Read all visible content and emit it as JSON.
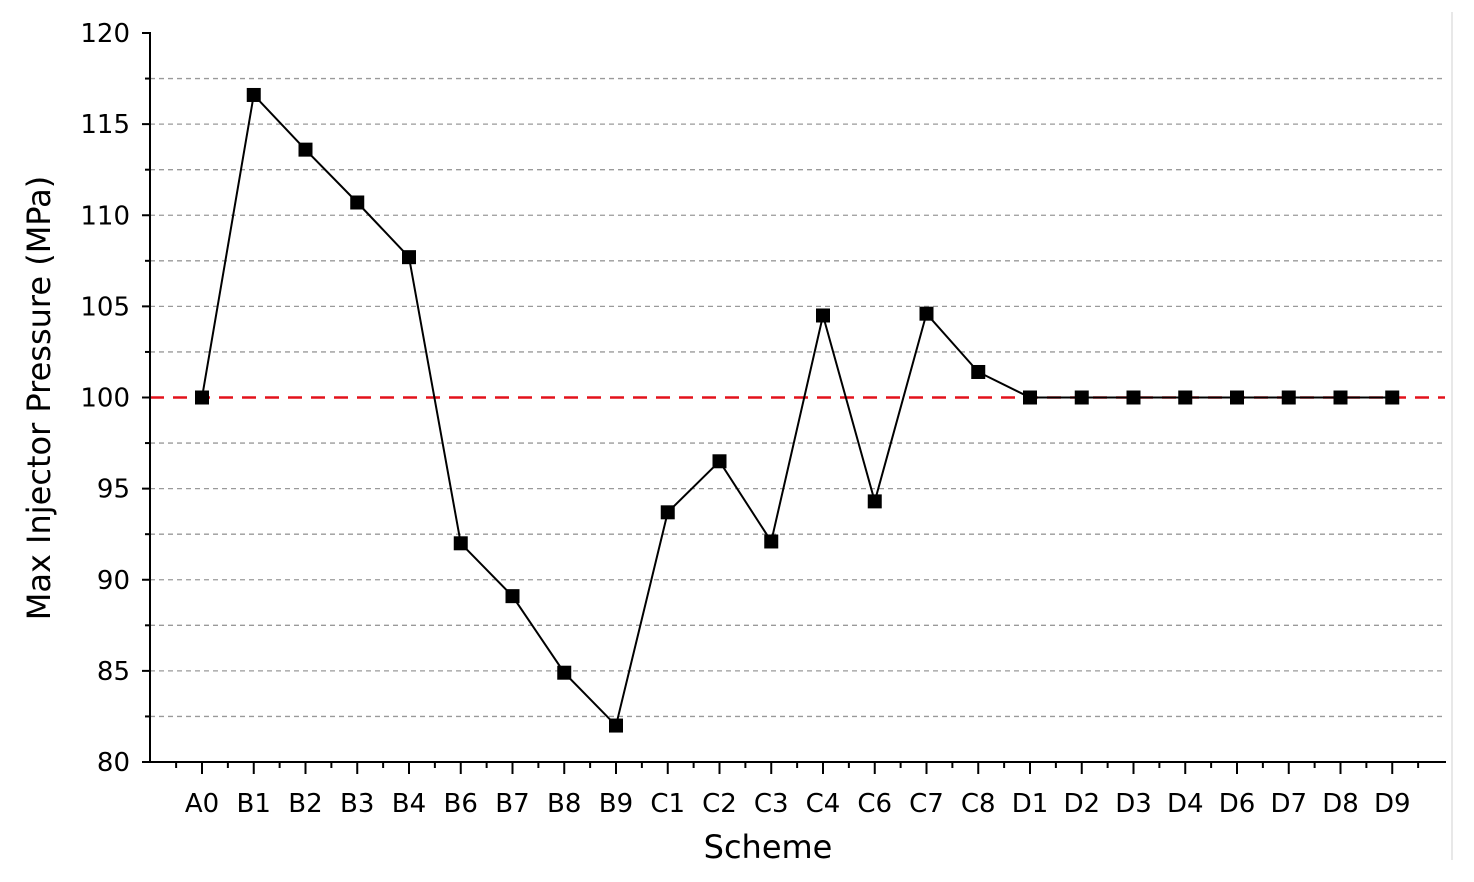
{
  "chart_data": {
    "type": "line",
    "xlabel": "Scheme",
    "ylabel": "Max Injector Pressure (MPa)",
    "ylim": [
      80,
      120
    ],
    "yticks": [
      80,
      85,
      90,
      95,
      100,
      105,
      110,
      115,
      120
    ],
    "grid": "horizontal dashed",
    "categories": [
      "A0",
      "B1",
      "B2",
      "B3",
      "B4",
      "B6",
      "B7",
      "B8",
      "B9",
      "C1",
      "C2",
      "C3",
      "C4",
      "C6",
      "C7",
      "C8",
      "D1",
      "D2",
      "D3",
      "D4",
      "D6",
      "D7",
      "D8",
      "D9"
    ],
    "series": [
      {
        "color": "#000000",
        "marker": "square",
        "values": [
          100.0,
          116.6,
          113.6,
          110.7,
          107.7,
          92.0,
          89.1,
          84.9,
          82.0,
          93.7,
          96.5,
          92.1,
          104.5,
          94.3,
          104.6,
          101.4,
          100.0,
          100.0,
          100.0,
          100.0,
          100.0,
          100.0,
          100.0,
          100.0
        ]
      }
    ],
    "reference_line": {
      "y": 100,
      "color": "#e3121b",
      "style": "dashed"
    }
  }
}
